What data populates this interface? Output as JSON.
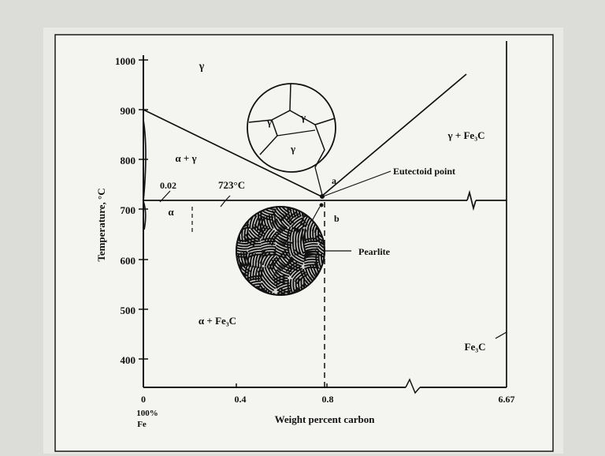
{
  "diagram": {
    "y_axis_label": "Temperature, °C",
    "x_axis_label": "Weight percent carbon",
    "y_ticks": [
      "1000",
      "900",
      "800",
      "700",
      "600",
      "500",
      "400"
    ],
    "x_ticks": [
      "0",
      "0.4",
      "0.8",
      "6.67"
    ],
    "x_left_sub": [
      "100%",
      "Fe"
    ],
    "phase_labels": {
      "gamma": "γ",
      "alpha_gamma": "α + γ",
      "alpha": "α",
      "alpha_fe3c": "α + Fe₃C",
      "gamma_fe3c": "γ + Fe₃C",
      "fe3c": "Fe₃C"
    },
    "annotations": {
      "solubility": "0.02",
      "eutectoid_temp": "723°C",
      "eutectoid_point": "Eutectoid point",
      "pearlite": "Pearlite",
      "point_a": "a",
      "point_b": "b"
    },
    "grain_labels": [
      "γ",
      "γ",
      "γ"
    ],
    "colors": {
      "paper": "#f4f4f1",
      "ink": "#1a1a1a",
      "background": "#dcdcd8"
    }
  }
}
